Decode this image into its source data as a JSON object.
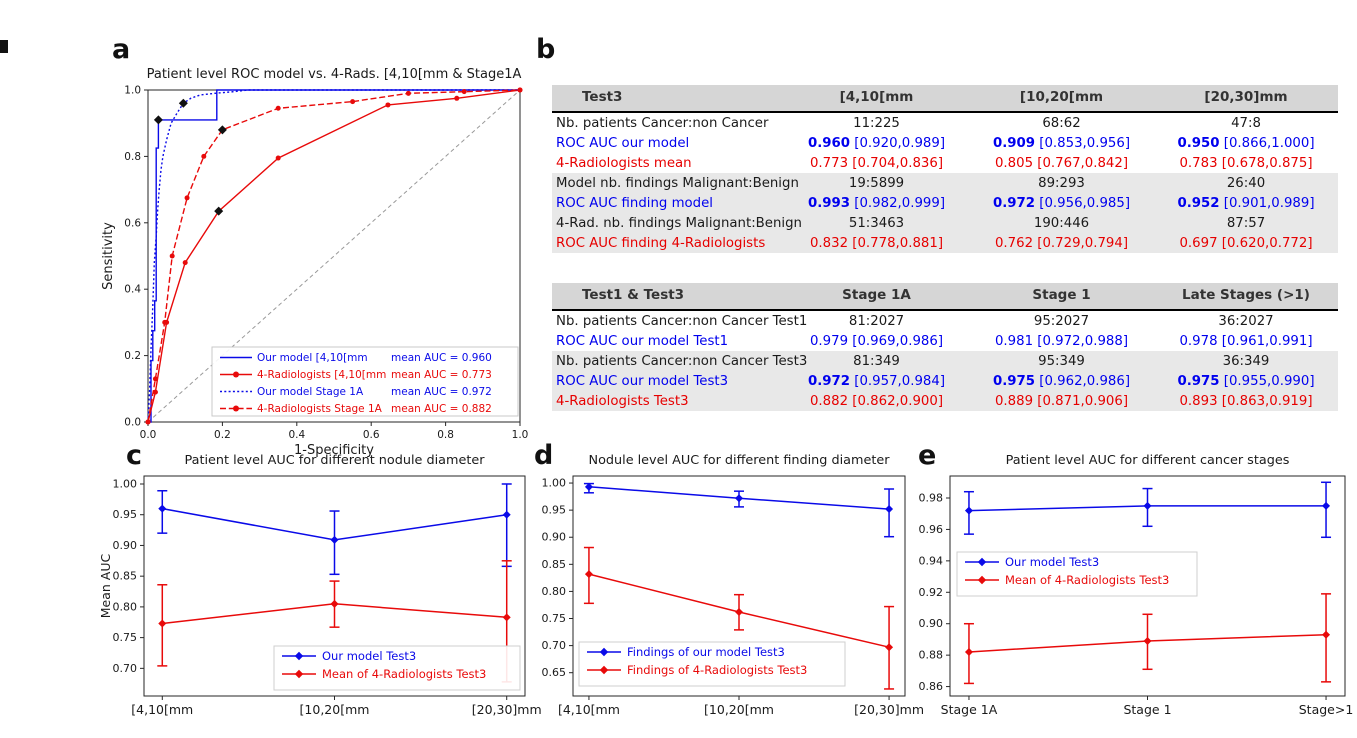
{
  "figure": {
    "panel_letters": [
      "a",
      "b",
      "c",
      "d",
      "e"
    ]
  },
  "tables": [
    {
      "name": "test3-by-diameter",
      "header": [
        "Test3",
        "[4,10[mm",
        "[10,20[mm",
        "[20,30]mm"
      ],
      "rows": [
        {
          "label": "Nb. patients Cancer:non Cancer",
          "color": "#1a1a1a",
          "shaded": false,
          "cells": [
            {
              "v": "11:225"
            },
            {
              "v": "68:62"
            },
            {
              "v": "47:8"
            }
          ]
        },
        {
          "label": "ROC AUC our model",
          "color": "#0000ee",
          "shaded": false,
          "cells": [
            {
              "v": "0.960",
              "ci": "[0.920,0.989]",
              "bold": true
            },
            {
              "v": "0.909",
              "ci": "[0.853,0.956]",
              "bold": true
            },
            {
              "v": "0.950",
              "ci": "[0.866,1.000]",
              "bold": true
            }
          ]
        },
        {
          "label": "4-Radiologists mean",
          "color": "#e60000",
          "shaded": false,
          "cells": [
            {
              "v": "0.773",
              "ci": "[0.704,0.836]"
            },
            {
              "v": "0.805",
              "ci": "[0.767,0.842]"
            },
            {
              "v": "0.783",
              "ci": "[0.678,0.875]"
            }
          ]
        },
        {
          "label": "Model nb. findings Malignant:Benign",
          "color": "#1a1a1a",
          "shaded": true,
          "cells": [
            {
              "v": "19:5899"
            },
            {
              "v": "89:293"
            },
            {
              "v": "26:40"
            }
          ]
        },
        {
          "label": "ROC AUC finding model",
          "color": "#0000ee",
          "shaded": true,
          "cells": [
            {
              "v": "0.993",
              "ci": "[0.982,0.999]",
              "bold": true
            },
            {
              "v": "0.972",
              "ci": "[0.956,0.985]",
              "bold": true
            },
            {
              "v": "0.952",
              "ci": "[0.901,0.989]",
              "bold": true
            }
          ]
        },
        {
          "label": "4-Rad. nb. findings Malignant:Benign",
          "color": "#1a1a1a",
          "shaded": true,
          "cells": [
            {
              "v": "51:3463"
            },
            {
              "v": "190:446"
            },
            {
              "v": "87:57"
            }
          ]
        },
        {
          "label": "ROC AUC finding 4-Radiologists",
          "color": "#e60000",
          "shaded": true,
          "cells": [
            {
              "v": "0.832",
              "ci": "[0.778,0.881]"
            },
            {
              "v": "0.762",
              "ci": "[0.729,0.794]"
            },
            {
              "v": "0.697",
              "ci": "[0.620,0.772]"
            }
          ]
        }
      ]
    },
    {
      "name": "test1-test3-by-stage",
      "header": [
        "Test1 & Test3",
        "Stage 1A",
        "Stage 1",
        "Late Stages (>1)"
      ],
      "rows": [
        {
          "label": "Nb. patients Cancer:non Cancer Test1",
          "color": "#1a1a1a",
          "shaded": false,
          "cells": [
            {
              "v": "81:2027"
            },
            {
              "v": "95:2027"
            },
            {
              "v": "36:2027"
            }
          ]
        },
        {
          "label": "ROC AUC our model Test1",
          "color": "#0000ee",
          "shaded": false,
          "cells": [
            {
              "v": "0.979",
              "ci": "[0.969,0.986]"
            },
            {
              "v": "0.981",
              "ci": "[0.972,0.988]"
            },
            {
              "v": "0.978",
              "ci": "[0.961,0.991]"
            }
          ]
        },
        {
          "label": "Nb. patients Cancer:non Cancer Test3",
          "color": "#1a1a1a",
          "shaded": true,
          "cells": [
            {
              "v": "81:349"
            },
            {
              "v": "95:349"
            },
            {
              "v": "36:349"
            }
          ]
        },
        {
          "label": "ROC AUC our model Test3",
          "color": "#0000ee",
          "shaded": true,
          "cells": [
            {
              "v": "0.972",
              "ci": "[0.957,0.984]",
              "bold": true
            },
            {
              "v": "0.975",
              "ci": "[0.962,0.986]",
              "bold": true
            },
            {
              "v": "0.975",
              "ci": "[0.955,0.990]",
              "bold": true
            }
          ]
        },
        {
          "label": "4-Radiologists Test3",
          "color": "#e60000",
          "shaded": true,
          "cells": [
            {
              "v": "0.882",
              "ci": "[0.862,0.900]"
            },
            {
              "v": "0.889",
              "ci": "[0.871,0.906]"
            },
            {
              "v": "0.893",
              "ci": "[0.863,0.919]"
            }
          ]
        }
      ]
    }
  ],
  "chart_data": [
    {
      "id": "a",
      "type": "line",
      "title": "Patient level ROC model vs. 4-Rads. [4,10[mm & Stage1A",
      "xlabel": "1-Specificity",
      "ylabel": "Sensitivity",
      "xlim": [
        0.0,
        1.0
      ],
      "ylim": [
        0.0,
        1.0
      ],
      "xticks": [
        "0.0",
        "0.2",
        "0.4",
        "0.6",
        "0.8",
        "1.0"
      ],
      "yticks": [
        "0.0",
        "0.2",
        "0.4",
        "0.6",
        "0.8",
        "1.0"
      ],
      "diagonal_reference_line": true,
      "grid": false,
      "legend_position": "lower right",
      "series": [
        {
          "name": "Our model [4,10[mm",
          "auc_label": "mean AUC = 0.960",
          "mean_auc": 0.96,
          "color": "#0a0ae8",
          "style": "solid",
          "marker": "none",
          "points": [
            [
              0,
              0
            ],
            [
              0.008,
              0
            ],
            [
              0.008,
              0.185
            ],
            [
              0.013,
              0.185
            ],
            [
              0.013,
              0.275
            ],
            [
              0.018,
              0.275
            ],
            [
              0.018,
              0.365
            ],
            [
              0.022,
              0.365
            ],
            [
              0.022,
              0.455
            ],
            [
              0.022,
              0.825
            ],
            [
              0.028,
              0.825
            ],
            [
              0.028,
              0.91
            ],
            [
              0.185,
              0.91
            ],
            [
              0.185,
              1.0
            ],
            [
              1,
              1
            ]
          ]
        },
        {
          "name": "4-Radiologists [4,10[mm",
          "auc_label": "mean AUC = 0.773",
          "mean_auc": 0.773,
          "color": "#e80a0a",
          "style": "solid",
          "marker": "circle",
          "points": [
            [
              0,
              0
            ],
            [
              0.02,
              0.09
            ],
            [
              0.05,
              0.3
            ],
            [
              0.1,
              0.48
            ],
            [
              0.19,
              0.635
            ],
            [
              0.35,
              0.795
            ],
            [
              0.645,
              0.955
            ],
            [
              0.83,
              0.975
            ],
            [
              1,
              1
            ]
          ]
        },
        {
          "name": "Our model Stage 1A",
          "auc_label": "mean AUC = 0.972",
          "mean_auc": 0.972,
          "color": "#0a0ae8",
          "style": "dotted",
          "marker": "none",
          "points": [
            [
              0,
              0
            ],
            [
              0.004,
              0.09
            ],
            [
              0.008,
              0.22
            ],
            [
              0.013,
              0.35
            ],
            [
              0.017,
              0.48
            ],
            [
              0.022,
              0.56
            ],
            [
              0.026,
              0.64
            ],
            [
              0.03,
              0.7
            ],
            [
              0.035,
              0.76
            ],
            [
              0.04,
              0.8
            ],
            [
              0.05,
              0.85
            ],
            [
              0.062,
              0.9
            ],
            [
              0.078,
              0.93
            ],
            [
              0.095,
              0.96
            ],
            [
              0.115,
              0.975
            ],
            [
              0.14,
              0.985
            ],
            [
              0.18,
              0.99
            ],
            [
              0.23,
              0.995
            ],
            [
              0.27,
              1.0
            ],
            [
              1,
              1
            ]
          ]
        },
        {
          "name": "4-Radiologists Stage 1A",
          "auc_label": "mean AUC = 0.882",
          "mean_auc": 0.882,
          "color": "#e80a0a",
          "style": "dashed",
          "marker": "circle",
          "points": [
            [
              0,
              0
            ],
            [
              0.02,
              0.13
            ],
            [
              0.045,
              0.3
            ],
            [
              0.065,
              0.5
            ],
            [
              0.105,
              0.675
            ],
            [
              0.15,
              0.8
            ],
            [
              0.2,
              0.88
            ],
            [
              0.35,
              0.945
            ],
            [
              0.55,
              0.965
            ],
            [
              0.7,
              0.99
            ],
            [
              0.85,
              0.995
            ],
            [
              1,
              1
            ]
          ]
        }
      ],
      "operating_points": [
        [
          0.028,
          0.91
        ],
        [
          0.095,
          0.96
        ],
        [
          0.19,
          0.635
        ],
        [
          0.2,
          0.88
        ]
      ]
    },
    {
      "id": "c",
      "type": "line-errorbar",
      "title": "Patient level AUC for different nodule diameter",
      "xlabel": "",
      "ylabel": "Mean AUC",
      "categories": [
        "[4,10[mm",
        "[10,20[mm",
        "[20,30]mm"
      ],
      "ylim": [
        0.655,
        1.013
      ],
      "yticks": [
        0.7,
        0.75,
        0.8,
        0.85,
        0.9,
        0.95,
        1.0
      ],
      "grid": false,
      "legend_position": "lower right",
      "series": [
        {
          "name": "Our model Test3",
          "color": "#0a0ae8",
          "values": [
            0.96,
            0.909,
            0.95
          ],
          "ci_low": [
            0.92,
            0.853,
            0.866
          ],
          "ci_high": [
            0.989,
            0.956,
            1.0
          ]
        },
        {
          "name": "Mean of 4-Radiologists Test3",
          "color": "#e80a0a",
          "values": [
            0.773,
            0.805,
            0.783
          ],
          "ci_low": [
            0.704,
            0.767,
            0.678
          ],
          "ci_high": [
            0.836,
            0.842,
            0.875
          ]
        }
      ]
    },
    {
      "id": "d",
      "type": "line-errorbar",
      "title": "Nodule level AUC for different finding diameter",
      "xlabel": "",
      "ylabel": "",
      "categories": [
        "[4,10[mm",
        "[10,20[mm",
        "[20,30]mm"
      ],
      "ylim": [
        0.607,
        1.013
      ],
      "yticks": [
        0.65,
        0.7,
        0.75,
        0.8,
        0.85,
        0.9,
        0.95,
        1.0
      ],
      "grid": false,
      "legend_position": "lower left",
      "series": [
        {
          "name": "Findings of our model Test3",
          "color": "#0a0ae8",
          "values": [
            0.993,
            0.972,
            0.952
          ],
          "ci_low": [
            0.982,
            0.956,
            0.901
          ],
          "ci_high": [
            0.999,
            0.985,
            0.989
          ]
        },
        {
          "name": "Findings of 4-Radiologists Test3",
          "color": "#e80a0a",
          "values": [
            0.832,
            0.762,
            0.697
          ],
          "ci_low": [
            0.778,
            0.729,
            0.62
          ],
          "ci_high": [
            0.881,
            0.794,
            0.772
          ]
        }
      ]
    },
    {
      "id": "e",
      "type": "line-errorbar",
      "title": "Patient level AUC for different cancer stages",
      "xlabel": "",
      "ylabel": "",
      "categories": [
        "Stage 1A",
        "Stage 1",
        "Stage>1"
      ],
      "ylim": [
        0.854,
        0.994
      ],
      "yticks": [
        0.86,
        0.88,
        0.9,
        0.92,
        0.94,
        0.96,
        0.98
      ],
      "grid": false,
      "legend_position": "center left",
      "series": [
        {
          "name": "Our model Test3",
          "color": "#0a0ae8",
          "values": [
            0.972,
            0.975,
            0.975
          ],
          "ci_low": [
            0.957,
            0.962,
            0.955
          ],
          "ci_high": [
            0.984,
            0.986,
            0.99
          ]
        },
        {
          "name": "Mean of 4-Radiologists Test3",
          "color": "#e80a0a",
          "values": [
            0.882,
            0.889,
            0.893
          ],
          "ci_low": [
            0.862,
            0.871,
            0.863
          ],
          "ci_high": [
            0.9,
            0.906,
            0.919
          ]
        }
      ]
    }
  ]
}
